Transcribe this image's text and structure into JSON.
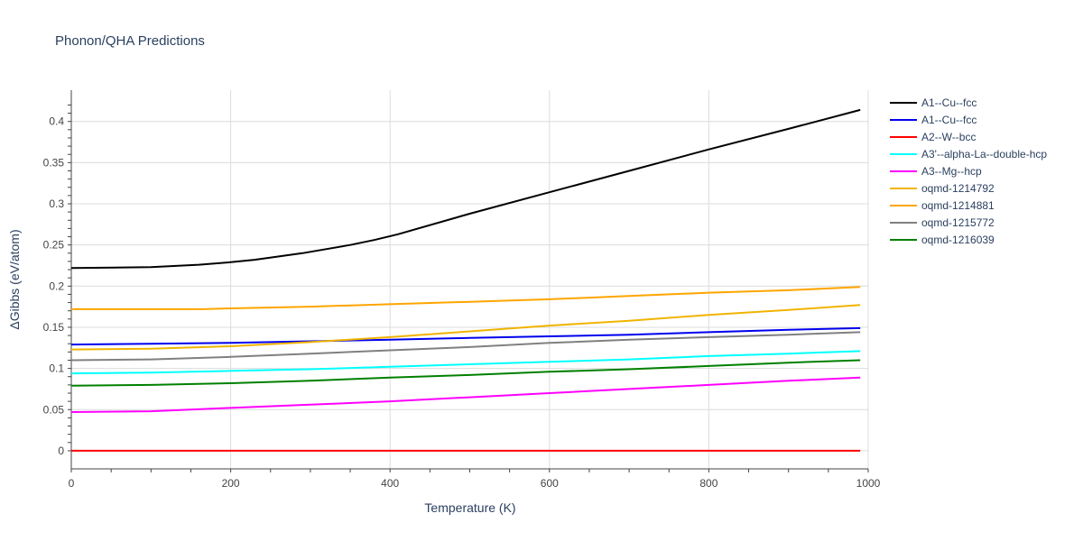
{
  "chart_data": {
    "type": "line",
    "title": "Phonon/QHA Predictions",
    "xlabel": "Temperature (K)",
    "ylabel": "ΔGibbs (eV/atom)",
    "xlim": [
      0,
      1000
    ],
    "ylim": [
      -0.022,
      0.438
    ],
    "xticks": [
      0,
      200,
      400,
      600,
      800,
      1000
    ],
    "xtick_labels": [
      "0",
      "200",
      "400",
      "600",
      "800",
      "1000"
    ],
    "yticks": [
      0,
      0.05,
      0.1,
      0.15,
      0.2,
      0.25,
      0.3,
      0.35,
      0.4
    ],
    "ytick_labels": [
      "0",
      "0.05",
      "0.1",
      "0.15",
      "0.2",
      "0.25",
      "0.3",
      "0.35",
      "0.4"
    ],
    "grid": true,
    "legend_position": "right",
    "series": [
      {
        "name": "A1--Cu--fcc",
        "color": "#000000",
        "x": [
          0,
          100,
          160,
          200,
          230,
          290,
          350,
          380,
          410,
          500,
          600,
          700,
          800,
          900,
          990
        ],
        "y": [
          0.222,
          0.223,
          0.226,
          0.229,
          0.232,
          0.24,
          0.25,
          0.256,
          0.263,
          0.288,
          0.314,
          0.34,
          0.366,
          0.391,
          0.414
        ]
      },
      {
        "name": "A1--Cu--fcc",
        "color": "#0000ee",
        "x": [
          0,
          100,
          200,
          300,
          400,
          500,
          600,
          700,
          800,
          900,
          990
        ],
        "y": [
          0.129,
          0.13,
          0.131,
          0.133,
          0.135,
          0.137,
          0.139,
          0.141,
          0.144,
          0.147,
          0.149
        ]
      },
      {
        "name": "A2--W--bcc",
        "color": "#ff0000",
        "x": [
          0,
          990
        ],
        "y": [
          0.0,
          0.0
        ]
      },
      {
        "name": "A3'--alpha-La--double-hcp",
        "color": "#00ffff",
        "x": [
          0,
          100,
          200,
          300,
          400,
          500,
          600,
          700,
          800,
          900,
          990
        ],
        "y": [
          0.094,
          0.095,
          0.097,
          0.099,
          0.102,
          0.105,
          0.108,
          0.111,
          0.115,
          0.118,
          0.121
        ]
      },
      {
        "name": "A3--Mg--hcp",
        "color": "#ff00ff",
        "x": [
          0,
          100,
          200,
          300,
          400,
          500,
          600,
          700,
          800,
          900,
          990
        ],
        "y": [
          0.047,
          0.048,
          0.052,
          0.056,
          0.06,
          0.065,
          0.07,
          0.075,
          0.08,
          0.085,
          0.089
        ]
      },
      {
        "name": "oqmd-1214792",
        "color": "#f0b400",
        "x": [
          0,
          100,
          200,
          300,
          400,
          500,
          600,
          700,
          800,
          900,
          990
        ],
        "y": [
          0.123,
          0.124,
          0.127,
          0.132,
          0.138,
          0.145,
          0.152,
          0.158,
          0.165,
          0.171,
          0.177
        ]
      },
      {
        "name": "oqmd-1214881",
        "color": "#ffa500",
        "x": [
          0,
          100,
          165,
          200,
          300,
          400,
          500,
          600,
          700,
          800,
          900,
          990
        ],
        "y": [
          0.172,
          0.172,
          0.172,
          0.173,
          0.175,
          0.178,
          0.181,
          0.184,
          0.188,
          0.192,
          0.195,
          0.199
        ]
      },
      {
        "name": "oqmd-1215772",
        "color": "#808080",
        "x": [
          0,
          100,
          200,
          300,
          400,
          500,
          600,
          700,
          800,
          900,
          990
        ],
        "y": [
          0.11,
          0.111,
          0.114,
          0.118,
          0.122,
          0.126,
          0.131,
          0.135,
          0.138,
          0.141,
          0.144
        ]
      },
      {
        "name": "oqmd-1216039",
        "color": "#008000",
        "x": [
          0,
          100,
          200,
          300,
          400,
          500,
          600,
          700,
          800,
          900,
          990
        ],
        "y": [
          0.079,
          0.08,
          0.082,
          0.085,
          0.089,
          0.092,
          0.096,
          0.099,
          0.103,
          0.107,
          0.11
        ]
      }
    ]
  }
}
